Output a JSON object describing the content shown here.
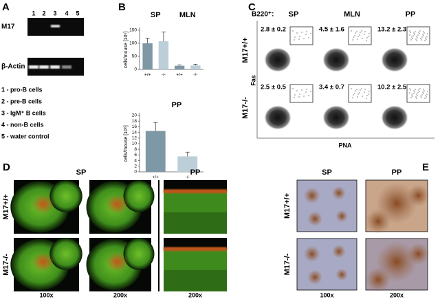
{
  "panel_a": {
    "label": "A",
    "lanes": [
      "1",
      "2",
      "3",
      "4",
      "5"
    ],
    "rows": [
      "M17",
      "β-Actin"
    ],
    "legend": [
      "1  -  pro-B cells",
      "2  -  pre-B cells",
      "3  -  IgM⁺ B cells",
      "4  -  non-B cells",
      "5  -  water control"
    ]
  },
  "chart_data": [
    {
      "type": "bar",
      "panel_label": "B",
      "group_labels": [
        "SP",
        "MLN"
      ],
      "y_label": "cells/mouse [10⁶]",
      "categories": [
        "+/+",
        "-/-",
        "+/+",
        "-/-"
      ],
      "values": [
        100,
        108,
        14,
        15
      ],
      "errors": [
        20,
        35,
        3,
        5
      ],
      "bar_colors": [
        "#7e98a5",
        "#bccfd8",
        "#7e98a5",
        "#bccfd8"
      ],
      "ylim": [
        0,
        150
      ],
      "yticks": [
        0,
        50,
        100,
        150
      ],
      "grid": false
    },
    {
      "type": "bar",
      "title": "PP",
      "y_label": "cells/mouse [10⁶]",
      "categories": [
        "+/+",
        "-/-"
      ],
      "values": [
        14.5,
        5.5
      ],
      "errors": [
        3,
        1.5
      ],
      "bar_colors": [
        "#7e98a5",
        "#bccfd8"
      ],
      "ylim": [
        0,
        20
      ],
      "yticks": [
        0,
        2,
        4,
        6,
        8,
        10,
        12,
        14,
        16,
        18,
        20
      ],
      "grid": false
    }
  ],
  "panel_c": {
    "label": "C",
    "gate": "B220⁺:",
    "columns": [
      "SP",
      "MLN",
      "PP"
    ],
    "rows": [
      "M17+/+",
      "M17-/-"
    ],
    "x_label": "PNA",
    "y_label": "Fas",
    "percentages": [
      [
        "2.8 ± 0.2",
        "4.5 ± 1.6",
        "13.2 ± 2.3"
      ],
      [
        "2.5 ± 0.5",
        "3.4 ± 0.7",
        "10.2 ± 2.5"
      ]
    ]
  },
  "panel_d": {
    "label": "D",
    "columns": [
      "SP",
      "PP"
    ],
    "rows": [
      "M17+/+",
      "M17-/-"
    ],
    "magnifications": [
      "100x",
      "200x",
      "200x"
    ]
  },
  "panel_e": {
    "label": "E",
    "columns": [
      "SP",
      "PP"
    ],
    "rows": [
      "M17+/+",
      "M17-/-"
    ],
    "magnifications": [
      "100x",
      "200x"
    ]
  }
}
